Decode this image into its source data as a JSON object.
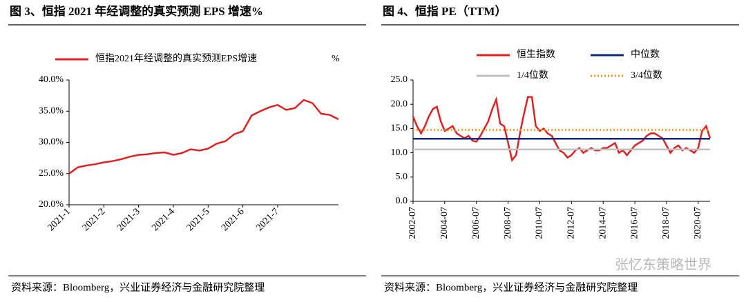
{
  "chart_data": [
    {
      "type": "line",
      "title": "图 3、恒指 2021 年经调整的真实预测 EPS 增速%",
      "source": "资料来源：Bloomberg，兴业证券经济与金融研究院整理",
      "legend_unit": "%",
      "categories": [
        "2021-1",
        null,
        null,
        null,
        "2021-2",
        null,
        null,
        null,
        "2021-3",
        null,
        null,
        null,
        "2021-4",
        null,
        null,
        null,
        "2021-5",
        null,
        null,
        null,
        "2021-6",
        null,
        null,
        null,
        "2021-7",
        null,
        null,
        null,
        null,
        null,
        null,
        null
      ],
      "series": [
        {
          "name": "恒指2021年经调整的真实预测EPS增速",
          "color": "#e02020",
          "values": [
            25.0,
            26.0,
            26.3,
            26.5,
            26.8,
            27.0,
            27.3,
            27.7,
            28.0,
            28.1,
            28.3,
            28.4,
            28.0,
            28.3,
            28.9,
            28.7,
            29.0,
            29.8,
            30.2,
            31.3,
            31.8,
            34.3,
            35.0,
            35.6,
            36.0,
            35.2,
            35.5,
            36.8,
            36.3,
            34.6,
            34.4,
            33.7
          ]
        }
      ],
      "ylim": [
        20,
        40
      ],
      "yticks": [
        {
          "value": 20,
          "label": "20.0%"
        },
        {
          "value": 25,
          "label": "25.0%"
        },
        {
          "value": 30,
          "label": "30.0%"
        },
        {
          "value": 35,
          "label": "35.0%"
        },
        {
          "value": 40,
          "label": "40.0%"
        }
      ]
    },
    {
      "type": "line",
      "title": "图 4、恒指 PE（TTM）",
      "source": "资料来源：Bloomberg，兴业证券经济与金融研究院整理",
      "categories": [
        "2002-07",
        null,
        null,
        null,
        null,
        null,
        null,
        null,
        "2004-07",
        null,
        null,
        null,
        null,
        null,
        null,
        null,
        "2006-07",
        null,
        null,
        null,
        null,
        null,
        null,
        null,
        "2008-07",
        null,
        null,
        null,
        null,
        null,
        null,
        null,
        "2010-07",
        null,
        null,
        null,
        null,
        null,
        null,
        null,
        "2012-07",
        null,
        null,
        null,
        null,
        null,
        null,
        null,
        "2014-07",
        null,
        null,
        null,
        null,
        null,
        null,
        null,
        "2016-07",
        null,
        null,
        null,
        null,
        null,
        null,
        null,
        "2018-07",
        null,
        null,
        null,
        null,
        null,
        null,
        null,
        "2020-07",
        null,
        null,
        null
      ],
      "series": [
        {
          "name": "恒生指数",
          "color": "#e02020",
          "values": [
            17.5,
            15.5,
            14.0,
            15.5,
            17.5,
            19.0,
            19.5,
            16.5,
            14.5,
            15.0,
            15.5,
            14.0,
            13.5,
            13.0,
            13.5,
            12.5,
            12.3,
            13.5,
            15.0,
            16.5,
            19.0,
            21.0,
            16.0,
            15.5,
            12.0,
            8.5,
            9.5,
            14.0,
            18.0,
            21.5,
            21.5,
            15.5,
            14.5,
            15.0,
            14.0,
            13.5,
            12.0,
            10.5,
            10.0,
            9.0,
            9.5,
            10.5,
            11.0,
            10.0,
            10.5,
            11.0,
            10.5,
            10.5,
            11.0,
            11.0,
            11.5,
            12.0,
            10.0,
            10.5,
            9.5,
            10.5,
            11.5,
            12.0,
            12.5,
            13.5,
            14.0,
            14.0,
            13.5,
            13.0,
            11.5,
            10.0,
            11.0,
            11.5,
            10.5,
            11.0,
            10.5,
            10.0,
            11.0,
            14.5,
            15.5,
            13.0
          ]
        },
        {
          "name": "中位数",
          "color": "#0d2a7a",
          "values": [
            12.9,
            12.9,
            12.9,
            12.9,
            12.9,
            12.9,
            12.9,
            12.9,
            12.9,
            12.9,
            12.9,
            12.9,
            12.9,
            12.9,
            12.9,
            12.9,
            12.9,
            12.9,
            12.9,
            12.9,
            12.9,
            12.9,
            12.9,
            12.9,
            12.9,
            12.9,
            12.9,
            12.9,
            12.9,
            12.9,
            12.9,
            12.9,
            12.9,
            12.9,
            12.9,
            12.9,
            12.9,
            12.9,
            12.9,
            12.9,
            12.9,
            12.9,
            12.9,
            12.9,
            12.9,
            12.9,
            12.9,
            12.9,
            12.9,
            12.9,
            12.9,
            12.9,
            12.9,
            12.9,
            12.9,
            12.9,
            12.9,
            12.9,
            12.9,
            12.9,
            12.9,
            12.9,
            12.9,
            12.9,
            12.9,
            12.9,
            12.9,
            12.9,
            12.9,
            12.9,
            12.9,
            12.9,
            12.9,
            12.9,
            12.9,
            12.9
          ]
        },
        {
          "name": "1/4位数",
          "color": "#bfbfbf",
          "values": [
            10.7,
            10.7,
            10.7,
            10.7,
            10.7,
            10.7,
            10.7,
            10.7,
            10.7,
            10.7,
            10.7,
            10.7,
            10.7,
            10.7,
            10.7,
            10.7,
            10.7,
            10.7,
            10.7,
            10.7,
            10.7,
            10.7,
            10.7,
            10.7,
            10.7,
            10.7,
            10.7,
            10.7,
            10.7,
            10.7,
            10.7,
            10.7,
            10.7,
            10.7,
            10.7,
            10.7,
            10.7,
            10.7,
            10.7,
            10.7,
            10.7,
            10.7,
            10.7,
            10.7,
            10.7,
            10.7,
            10.7,
            10.7,
            10.7,
            10.7,
            10.7,
            10.7,
            10.7,
            10.7,
            10.7,
            10.7,
            10.7,
            10.7,
            10.7,
            10.7,
            10.7,
            10.7,
            10.7,
            10.7,
            10.7,
            10.7,
            10.7,
            10.7,
            10.7,
            10.7,
            10.7,
            10.7,
            10.7,
            10.7,
            10.7,
            10.7
          ]
        },
        {
          "name": "3/4位数",
          "color": "#f5901e",
          "style": "dotted",
          "values": [
            14.7,
            14.7,
            14.7,
            14.7,
            14.7,
            14.7,
            14.7,
            14.7,
            14.7,
            14.7,
            14.7,
            14.7,
            14.7,
            14.7,
            14.7,
            14.7,
            14.7,
            14.7,
            14.7,
            14.7,
            14.7,
            14.7,
            14.7,
            14.7,
            14.7,
            14.7,
            14.7,
            14.7,
            14.7,
            14.7,
            14.7,
            14.7,
            14.7,
            14.7,
            14.7,
            14.7,
            14.7,
            14.7,
            14.7,
            14.7,
            14.7,
            14.7,
            14.7,
            14.7,
            14.7,
            14.7,
            14.7,
            14.7,
            14.7,
            14.7,
            14.7,
            14.7,
            14.7,
            14.7,
            14.7,
            14.7,
            14.7,
            14.7,
            14.7,
            14.7,
            14.7,
            14.7,
            14.7,
            14.7,
            14.7,
            14.7,
            14.7,
            14.7,
            14.7,
            14.7,
            14.7,
            14.7,
            14.7,
            14.7,
            14.7,
            14.7
          ]
        }
      ],
      "ylim": [
        0,
        25
      ],
      "yticks": [
        {
          "value": 0,
          "label": "0.0"
        },
        {
          "value": 5,
          "label": "5.0"
        },
        {
          "value": 10,
          "label": "10.0"
        },
        {
          "value": 15,
          "label": "15.0"
        },
        {
          "value": 20,
          "label": "20.0"
        },
        {
          "value": 25,
          "label": "25.0"
        }
      ]
    }
  ],
  "watermark": "张忆东策略世界"
}
